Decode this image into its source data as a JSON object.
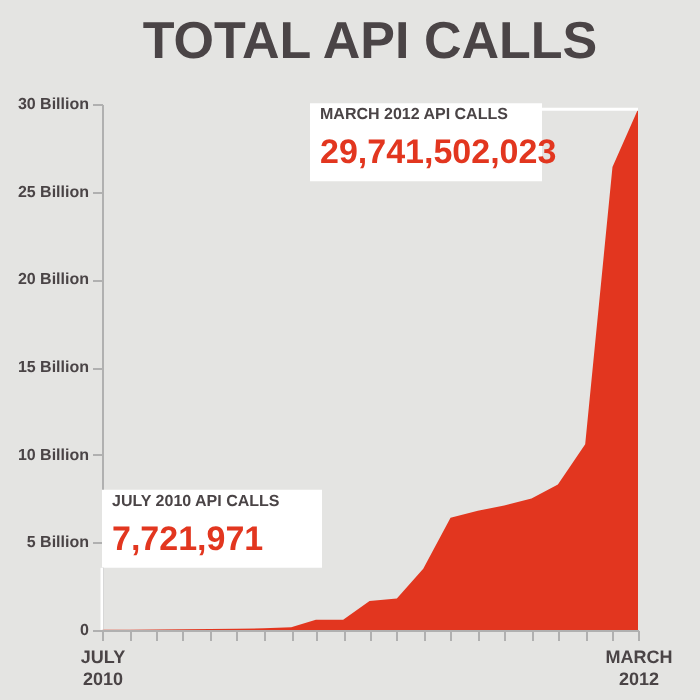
{
  "chart_data": {
    "type": "area",
    "title": "TOTAL API CALLS",
    "color": "#e2361f",
    "x": [
      "2010-07",
      "2010-08",
      "2010-09",
      "2010-10",
      "2010-11",
      "2010-12",
      "2011-01",
      "2011-02",
      "2011-03",
      "2011-04",
      "2011-05",
      "2011-06",
      "2011-07",
      "2011-08",
      "2011-09",
      "2011-10",
      "2011-11",
      "2011-12",
      "2012-01",
      "2012-02",
      "2012-03"
    ],
    "values": [
      0.01,
      0.02,
      0.03,
      0.04,
      0.05,
      0.07,
      0.1,
      0.15,
      0.58,
      0.58,
      1.65,
      1.8,
      3.5,
      6.4,
      6.8,
      7.1,
      7.5,
      8.3,
      10.6,
      26.4,
      29.7
    ],
    "annotations": [
      "JULY 2010 API CALLS",
      {
        "text": "7,721,971",
        "x": "2010-07",
        "y": 0.01
      },
      "MARCH 2012 API CALLS",
      {
        "text": "29,741,502,023",
        "x": "2012-03",
        "y": 29.7
      }
    ],
    "xlim": [
      "2010-07",
      "2012-03"
    ],
    "xticks": [
      {
        "value": "2010-07",
        "label": "JULY\n2010"
      },
      {
        "value": "2010-08",
        "label": null
      },
      {
        "value": "2010-09",
        "label": null
      },
      {
        "value": "2010-10",
        "label": null
      },
      {
        "value": "2010-11",
        "label": null
      },
      {
        "value": "2010-12",
        "label": null
      },
      {
        "value": "2011-01",
        "label": null
      },
      {
        "value": "2011-02",
        "label": null
      },
      {
        "value": "2011-03",
        "label": null
      },
      {
        "value": "2011-04",
        "label": null
      },
      {
        "value": "2011-05",
        "label": null
      },
      {
        "value": "2011-06",
        "label": null
      },
      {
        "value": "2011-07",
        "label": null
      },
      {
        "value": "2011-08",
        "label": null
      },
      {
        "value": "2011-09",
        "label": null
      },
      {
        "value": "2011-10",
        "label": null
      },
      {
        "value": "2011-11",
        "label": null
      },
      {
        "value": "2011-12",
        "label": null
      },
      {
        "value": "2012-01",
        "label": null
      },
      {
        "value": "2012-02",
        "label": null
      },
      {
        "value": "2012-03",
        "label": "MARCH\n2012"
      }
    ],
    "ylim": [
      0,
      30
    ],
    "yticks": [
      0,
      {
        "value": 5,
        "label": "5 Billion"
      },
      {
        "value": 10,
        "label": "10 Billion"
      },
      {
        "value": 15,
        "label": "15 Billion"
      },
      {
        "value": 20,
        "label": "20 Billion"
      },
      {
        "value": 25,
        "label": "25 Billion"
      },
      {
        "value": 30,
        "label": "30 Billion"
      }
    ]
  }
}
